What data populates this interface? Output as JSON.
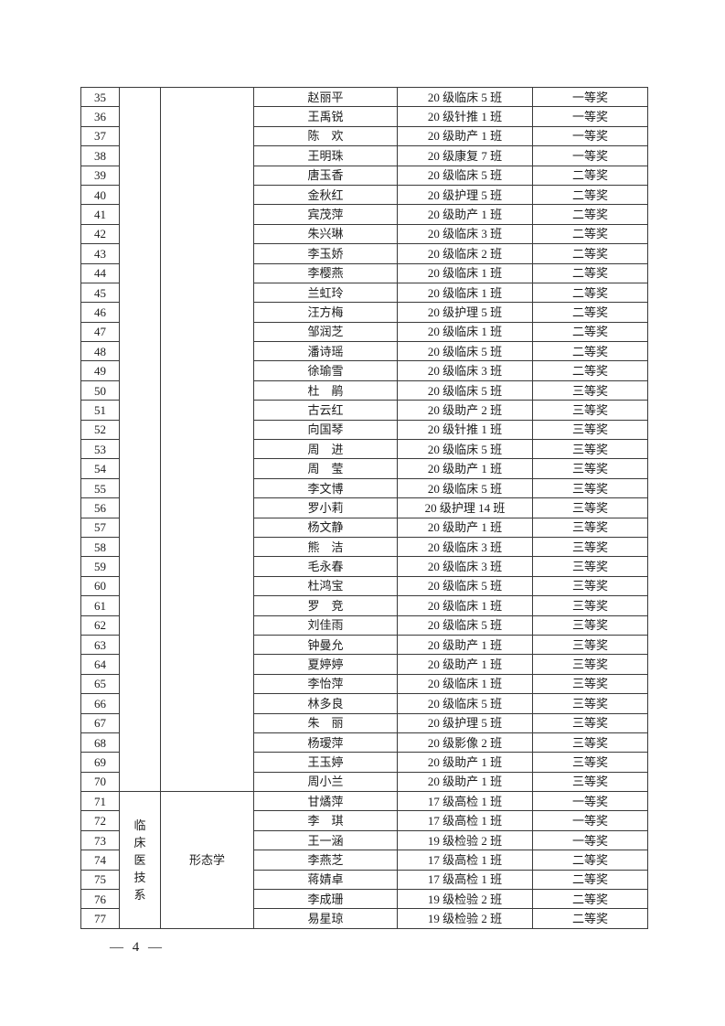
{
  "page": {
    "footer_page_number": "— 4 —"
  },
  "table": {
    "groups": [
      {
        "department": "",
        "category": "",
        "rows": [
          {
            "no": "35",
            "name": "赵丽平",
            "class": "20 级临床 5 班",
            "award": "一等奖"
          },
          {
            "no": "36",
            "name": "王禹锐",
            "class": "20 级针推 1 班",
            "award": "一等奖"
          },
          {
            "no": "37",
            "name": "陈　欢",
            "class": "20 级助产 1 班",
            "award": "一等奖"
          },
          {
            "no": "38",
            "name": "王明珠",
            "class": "20 级康复 7 班",
            "award": "一等奖"
          },
          {
            "no": "39",
            "name": "唐玉香",
            "class": "20 级临床 5 班",
            "award": "二等奖"
          },
          {
            "no": "40",
            "name": "金秋红",
            "class": "20 级护理 5 班",
            "award": "二等奖"
          },
          {
            "no": "41",
            "name": "宾茂萍",
            "class": "20 级助产 1 班",
            "award": "二等奖"
          },
          {
            "no": "42",
            "name": "朱兴琳",
            "class": "20 级临床 3 班",
            "award": "二等奖"
          },
          {
            "no": "43",
            "name": "李玉娇",
            "class": "20 级临床 2 班",
            "award": "二等奖"
          },
          {
            "no": "44",
            "name": "李樱燕",
            "class": "20 级临床 1 班",
            "award": "二等奖"
          },
          {
            "no": "45",
            "name": "兰虹玲",
            "class": "20 级临床 1 班",
            "award": "二等奖"
          },
          {
            "no": "46",
            "name": "汪方梅",
            "class": "20 级护理 5 班",
            "award": "二等奖"
          },
          {
            "no": "47",
            "name": "邹润芝",
            "class": "20 级临床 1 班",
            "award": "二等奖"
          },
          {
            "no": "48",
            "name": "潘诗瑶",
            "class": "20 级临床 5 班",
            "award": "二等奖"
          },
          {
            "no": "49",
            "name": "徐瑜雪",
            "class": "20 级临床 3 班",
            "award": "二等奖"
          },
          {
            "no": "50",
            "name": "杜　鹃",
            "class": "20 级临床 5 班",
            "award": "三等奖"
          },
          {
            "no": "51",
            "name": "古云红",
            "class": "20 级助产 2 班",
            "award": "三等奖"
          },
          {
            "no": "52",
            "name": "向国琴",
            "class": "20 级针推 1 班",
            "award": "三等奖"
          },
          {
            "no": "53",
            "name": "周　进",
            "class": "20 级临床 5 班",
            "award": "三等奖"
          },
          {
            "no": "54",
            "name": "周　莹",
            "class": "20 级助产 1 班",
            "award": "三等奖"
          },
          {
            "no": "55",
            "name": "李文博",
            "class": "20 级临床 5 班",
            "award": "三等奖"
          },
          {
            "no": "56",
            "name": "罗小莉",
            "class": "20 级护理 14 班",
            "award": "三等奖"
          },
          {
            "no": "57",
            "name": "杨文静",
            "class": "20 级助产 1 班",
            "award": "三等奖"
          },
          {
            "no": "58",
            "name": "熊　洁",
            "class": "20 级临床 3 班",
            "award": "三等奖"
          },
          {
            "no": "59",
            "name": "毛永春",
            "class": "20 级临床 3 班",
            "award": "三等奖"
          },
          {
            "no": "60",
            "name": "杜鸿宝",
            "class": "20 级临床 5 班",
            "award": "三等奖"
          },
          {
            "no": "61",
            "name": "罗　竞",
            "class": "20 级临床 1 班",
            "award": "三等奖"
          },
          {
            "no": "62",
            "name": "刘佳雨",
            "class": "20 级临床 5 班",
            "award": "三等奖"
          },
          {
            "no": "63",
            "name": "钟曼允",
            "class": "20 级助产 1 班",
            "award": "三等奖"
          },
          {
            "no": "64",
            "name": "夏婷婷",
            "class": "20 级助产 1 班",
            "award": "三等奖"
          },
          {
            "no": "65",
            "name": "李怡萍",
            "class": "20 级临床 1 班",
            "award": "三等奖"
          },
          {
            "no": "66",
            "name": "林多良",
            "class": "20 级临床 5 班",
            "award": "三等奖"
          },
          {
            "no": "67",
            "name": "朱　丽",
            "class": "20 级护理 5 班",
            "award": "三等奖"
          },
          {
            "no": "68",
            "name": "杨瑷萍",
            "class": "20 级影像 2 班",
            "award": "三等奖"
          },
          {
            "no": "69",
            "name": "王玉婷",
            "class": "20 级助产 1 班",
            "award": "三等奖"
          },
          {
            "no": "70",
            "name": "周小兰",
            "class": "20 级助产 1 班",
            "award": "三等奖"
          }
        ]
      },
      {
        "department": "临床医技系",
        "category": "形态学",
        "rows": [
          {
            "no": "71",
            "name": "甘燏萍",
            "class": "17 级高检 1 班",
            "award": "一等奖"
          },
          {
            "no": "72",
            "name": "李　琪",
            "class": "17 级高检 1 班",
            "award": "一等奖"
          },
          {
            "no": "73",
            "name": "王一涵",
            "class": "19 级检验 2 班",
            "award": "一等奖"
          },
          {
            "no": "74",
            "name": "李燕芝",
            "class": "17 级高检 1 班",
            "award": "二等奖"
          },
          {
            "no": "75",
            "name": "蒋婧卓",
            "class": "17 级高检 1 班",
            "award": "二等奖"
          },
          {
            "no": "76",
            "name": "李成珊",
            "class": "19 级检验 2 班",
            "award": "二等奖"
          },
          {
            "no": "77",
            "name": "易星琼",
            "class": "19 级检验 2 班",
            "award": "二等奖"
          }
        ]
      }
    ]
  }
}
